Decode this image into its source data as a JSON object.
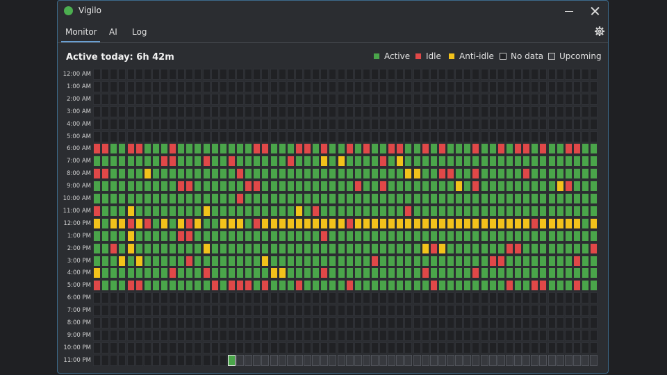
{
  "app": {
    "title": "Vigilo",
    "status_color": "#4caf50"
  },
  "tabs": [
    {
      "label": "Monitor",
      "selected": true
    },
    {
      "label": "AI",
      "selected": false
    },
    {
      "label": "Log",
      "selected": false
    }
  ],
  "icons": {
    "settings": "gear-icon",
    "minimize": "minimize-icon",
    "close": "close-icon"
  },
  "summary": {
    "active_today": "Active today: 6h 42m"
  },
  "legend": [
    {
      "key": "active",
      "label": "Active",
      "color": "#4aa54a"
    },
    {
      "key": "idle",
      "label": "Idle",
      "color": "#e04848"
    },
    {
      "key": "anti",
      "label": "Anti-idle",
      "color": "#f2c21b"
    },
    {
      "key": "none",
      "label": "No data",
      "color": "#202124"
    },
    {
      "key": "up",
      "label": "Upcoming",
      "color": "#37393e"
    }
  ],
  "grid": {
    "hours": [
      "12:00 AM",
      "1:00 AM",
      "2:00 AM",
      "3:00 AM",
      "4:00 AM",
      "5:00 AM",
      "6:00 AM",
      "7:00 AM",
      "8:00 AM",
      "9:00 AM",
      "10:00 AM",
      "11:00 AM",
      "12:00 PM",
      "1:00 PM",
      "2:00 PM",
      "3:00 PM",
      "4:00 PM",
      "5:00 PM",
      "6:00 PM",
      "7:00 PM",
      "8:00 PM",
      "9:00 PM",
      "10:00 PM",
      "11:00 PM"
    ],
    "minutes_per_cell": 1,
    "current_slot": {
      "hour": "11:00 PM",
      "index": 16
    },
    "legend_codes": {
      "A": "active",
      "I": "idle",
      "Y": "anti",
      "N": "none",
      "U": "up",
      "C": "current"
    },
    "rows": [
      "NNNNNNNNNNNNNNNNNNNNNNNNNNNNNNNNNNNNNNNNNNNNNNNNNNNNNNNNNNNNNN",
      "NNNNNNNNNNNNNNNNNNNNNNNNNNNNNNNNNNNNNNNNNNNNNNNNNNNNNNNNNNNNNN",
      "NNNNNNNNNNNNNNNNNNNNNNNNNNNNNNNNNNNNNNNNNNNNNNNNNNNNNNNNNNNNNN",
      "NNNNNNNNNNNNNNNNNNNNNNNNNNNNNNNNNNNNNNNNNNNNNNNNNNNNNNNNNNNNNN",
      "NNNNNNNNNNNNNNNNNNNNNNNNNNNNNNNNNNNNNNNNNNNNNNNNNNNNNNNNNNNNNN",
      "NNNNNNNNNNNNNNNNNNNNNNNNNNNNNNNNNNNNNNNNNNNNNNNNNNNNNNNNNNNNNN",
      "IIAAIIAAAIAAAAAAAAAIIAAAIIAIAAIAIAAIIAAIAIAAAIAAIAIIAIAAIIAAII",
      "AAAAAAAAIIAAAIAAIAAAAAAIAAAYAYAAAAIAYAAAAAAAAAAAAAAAAAAAAAAAAAI",
      "IIAAAAYAAAAAAAAAAIAAAAAAAAAAAAAAAAAAAYYAAIIAAIAAAAAIAAAAAAAAAIAI",
      "AAAAAAAAAAIIAAAAAAIIAAAAAAAAAAAIAAIAAAAAAAAYAIAAAAAAAAAYIAAAI",
      "AAAAAAAAAAAAAAAAAIAAAAAAAAAAAAAAAAAAAAAAAAAAAAAAAAAAAAAAAAAAII",
      "IAAAYAAAAAAAAYAAAAAAAAAAYAIAAAAAAAAAAIAAAAAAAAAAAAAAAAAAAAAAAI",
      "YAYYIYIAYAYIYAAYYYAIYYYYYYYYYYIYYYYYYYYYYYYYYYYYYYYYIYYYYYAYYY",
      "AAAAYAAAAAIIAAAAAAAAAAAAAAAIAAAAAAAAAAAAAAAAAAAAAAAAAAAAAAAAYI",
      "AAIAYAAAAAAAAYAAAAAAAAAAAAAAAAAAAAAAAAAYIYAAAAAAAIIAAAAAAAAIAY",
      "AAAYAYAAAAAIAAAAAAAAYAAAAAAAAAAAAIAAAAAAAAAAAAAIIAAAAAAAAIAAAI",
      "YAAAAAAAAIAAAIAAAAAAAYYAAAAIAAAAAAAAAAAIAAAAAIAAAAAAAAAAAAAAYI",
      "IAAAIIAAAAAAAAIAIIIAIAAAIAAAAAIAAAAAAAAAIAAAAAAAAIAAIIAAAIAAIAI",
      "NNNNNNNNNNNNNNNNNNNNNNNNNNNNNNNNNNNNNNNNNNNNNNNNNNNNNNNNNNNNNN",
      "NNNNNNNNNNNNNNNNNNNNNNNNNNNNNNNNNNNNNNNNNNNNNNNNNNNNNNNNNNNNNN",
      "NNNNNNNNNNNNNNNNNNNNNNNNNNNNNNNNNNNNNNNNNNNNNNNNNNNNNNNNNNNNNN",
      "NNNNNNNNNNNNNNNNNNNNNNNNNNNNNNNNNNNNNNNNNNNNNNNNNNNNNNNNNNNNNN",
      "NNNNNNNNNNNNNNNNNNNNNNNNNNNNNNNNNNNNNNNNNNNNNNNNNNNNNNNNNNNNNN",
      "NNNNNNNNNNNNNNNNCUUUUUUUUUUUUUUUUUUUUUUUUUUUUUUUUUUUUUUUUUUUU"
    ]
  }
}
